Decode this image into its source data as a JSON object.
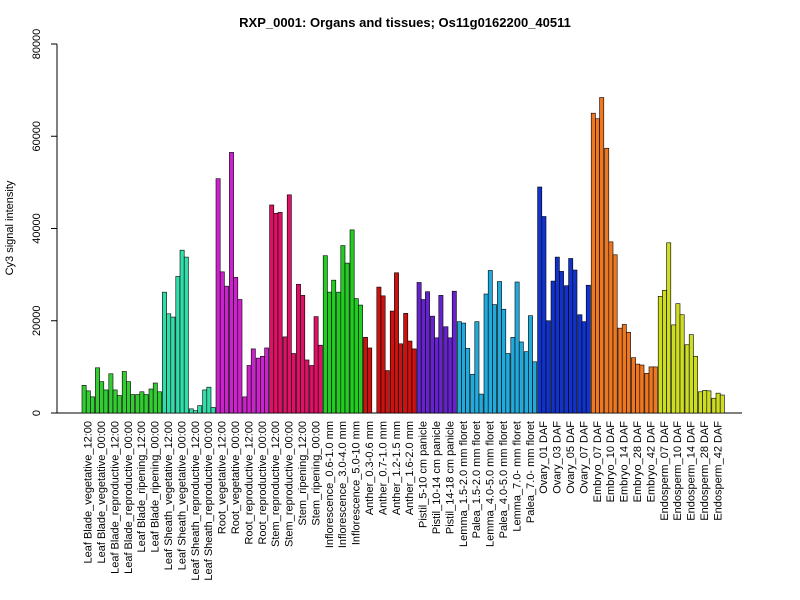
{
  "chart_data": {
    "type": "bar",
    "title": "RXP_0001: Organs and tissues; Os11g0162200_40511",
    "xlabel": "",
    "ylabel": "Cy3 signal intensity",
    "ylim": [
      0,
      80000
    ],
    "yticks": [
      0,
      20000,
      40000,
      60000,
      80000
    ],
    "grid": false,
    "legend": "none",
    "groups": [
      {
        "label": "Leaf Blade_vegetative_12:00",
        "color": "#33cc33",
        "values": [
          6000,
          4800,
          3500
        ]
      },
      {
        "label": "Leaf Blade_vegetative_00:00",
        "color": "#33cc33",
        "values": [
          9800,
          6800,
          5000
        ]
      },
      {
        "label": "Leaf Blade_reproductive_12:00",
        "color": "#33cc33",
        "values": [
          8500,
          5000,
          3800
        ]
      },
      {
        "label": "Leaf Blade_reproductive_00:00",
        "color": "#33cc33",
        "values": [
          9000,
          6800,
          4000
        ]
      },
      {
        "label": "Leaf Blade_ripening_12:00",
        "color": "#33cc33",
        "values": [
          4000,
          4600,
          4000
        ]
      },
      {
        "label": "Leaf Blade_ripening_00:00",
        "color": "#33cc33",
        "values": [
          5200,
          6500,
          4600
        ]
      },
      {
        "label": "Leaf Sheath_vegetative_12:00",
        "color": "#33ddaa",
        "values": [
          26200,
          21500,
          20800
        ]
      },
      {
        "label": "Leaf Sheath_vegetative_00:00",
        "color": "#33ddaa",
        "values": [
          29600,
          35300,
          33800
        ]
      },
      {
        "label": "Leaf Sheath_reproductive_12:00",
        "color": "#33ddaa",
        "values": [
          900,
          500,
          1600
        ]
      },
      {
        "label": "Leaf Sheath_reproductive_00:00",
        "color": "#33ddaa",
        "values": [
          5000,
          5600,
          1200
        ]
      },
      {
        "label": "Root_vegetative_12:00",
        "color": "#cc22cc",
        "values": [
          50800,
          30600,
          27500
        ]
      },
      {
        "label": "Root_vegetative_00:00",
        "color": "#cc22cc",
        "values": [
          56500,
          29400,
          24600
        ]
      },
      {
        "label": "Root_reproductive_12:00",
        "color": "#cc22cc",
        "values": [
          3500,
          10300,
          13900
        ]
      },
      {
        "label": "Root_reproductive_00:00",
        "color": "#cc22cc",
        "values": [
          11900,
          12300,
          14100
        ]
      },
      {
        "label": "Stem_reproductive_12:00",
        "color": "#dd1166",
        "values": [
          45100,
          43300,
          43500
        ]
      },
      {
        "label": "Stem_reproductive_00:00",
        "color": "#dd1166",
        "values": [
          16500,
          47300,
          12900
        ]
      },
      {
        "label": "Stem_ripening_12:00",
        "color": "#dd1166",
        "values": [
          27900,
          25500,
          11500
        ]
      },
      {
        "label": "Stem_ripening_00:00",
        "color": "#dd1166",
        "values": [
          10300,
          20900,
          14700
        ]
      },
      {
        "label": "Inflorescence_0.6-1.0 mm",
        "color": "#22cc22",
        "values": [
          34100,
          26200,
          28800
        ]
      },
      {
        "label": "Inflorescence_3.0-4.0 mm",
        "color": "#22cc22",
        "values": [
          26200,
          36300,
          32500
        ]
      },
      {
        "label": "Inflorescence_5.0-10 mm",
        "color": "#22cc22",
        "values": [
          39700,
          24800,
          23400
        ]
      },
      {
        "label": "Anther_0.3-0.6 mm",
        "color": "#cc1111",
        "values": [
          16400,
          14100
        ]
      },
      {
        "label": "Anther_0.7-1.0 mm",
        "color": "#cc1111",
        "values": [
          27300,
          25400,
          9200
        ]
      },
      {
        "label": "Anther_1.2-1.5 mm",
        "color": "#cc1111",
        "values": [
          22100,
          30400,
          15000
        ]
      },
      {
        "label": "Anther_1.6-2.0 mm",
        "color": "#cc1111",
        "values": [
          21600,
          15600,
          13900
        ]
      },
      {
        "label": "Pistil_5-10 cm panicle",
        "color": "#6622cc",
        "values": [
          28300,
          24600,
          26300
        ]
      },
      {
        "label": "Pistil_10-14 cm panicle",
        "color": "#6622cc",
        "values": [
          21000,
          16300,
          25500
        ]
      },
      {
        "label": "Pistil_14-18 cm panicle",
        "color": "#6622cc",
        "values": [
          18700,
          16300,
          26400
        ]
      },
      {
        "label": "Lemma_1.5-2.0 mm floret",
        "color": "#22aadd",
        "values": [
          19800,
          19500,
          14000
        ]
      },
      {
        "label": "Palea_1.5-2.0 mm floret",
        "color": "#22aadd",
        "values": [
          8400,
          19800,
          4100
        ]
      },
      {
        "label": "Lemma_4.0-5.0 mm floret",
        "color": "#22aadd",
        "values": [
          25800,
          30900,
          23500
        ]
      },
      {
        "label": "Palea_4.0-5.0 mm floret",
        "color": "#22aadd",
        "values": [
          28500,
          22500,
          12900
        ]
      },
      {
        "label": "Lemma_7.0- mm floret",
        "color": "#22aadd",
        "values": [
          16400,
          28400,
          15400
        ]
      },
      {
        "label": "Palea_7.0- mm floret",
        "color": "#22aadd",
        "values": [
          13300,
          21100,
          11100
        ]
      },
      {
        "label": "Ovary_01 DAF",
        "color": "#1133cc",
        "values": [
          49000,
          42600,
          20000
        ]
      },
      {
        "label": "Ovary_03 DAF",
        "color": "#1133cc",
        "values": [
          28600,
          33800,
          30700
        ]
      },
      {
        "label": "Ovary_05 DAF",
        "color": "#1133cc",
        "values": [
          27600,
          33500,
          31000
        ]
      },
      {
        "label": "Ovary_07 DAF",
        "color": "#1133cc",
        "values": [
          21300,
          19800,
          27700
        ]
      },
      {
        "label": "Embryo_07 DAF",
        "color": "#ee7722",
        "values": [
          65000,
          63800,
          68400
        ]
      },
      {
        "label": "Embryo_10 DAF",
        "color": "#ee7722",
        "values": [
          57400,
          37100,
          34300
        ]
      },
      {
        "label": "Embryo_14 DAF",
        "color": "#ee7722",
        "values": [
          18400,
          19200,
          17500
        ]
      },
      {
        "label": "Embryo_28 DAF",
        "color": "#ee7722",
        "values": [
          12000,
          10600,
          10400
        ]
      },
      {
        "label": "Embryo_42 DAF",
        "color": "#ee7722",
        "values": [
          8600,
          10000,
          10000
        ]
      },
      {
        "label": "Endosperm_07 DAF",
        "color": "#ccdd22",
        "values": [
          25300,
          26600,
          36900
        ]
      },
      {
        "label": "Endosperm_10 DAF",
        "color": "#ccdd22",
        "values": [
          19100,
          23700,
          21300
        ]
      },
      {
        "label": "Endosperm_14 DAF",
        "color": "#ccdd22",
        "values": [
          14800,
          17000,
          12300
        ]
      },
      {
        "label": "Endosperm_28 DAF",
        "color": "#ccdd22",
        "values": [
          4600,
          4900,
          4800
        ]
      },
      {
        "label": "Endosperm_42 DAF",
        "color": "#ccdd22",
        "values": [
          3200,
          4300,
          3900
        ]
      }
    ]
  }
}
